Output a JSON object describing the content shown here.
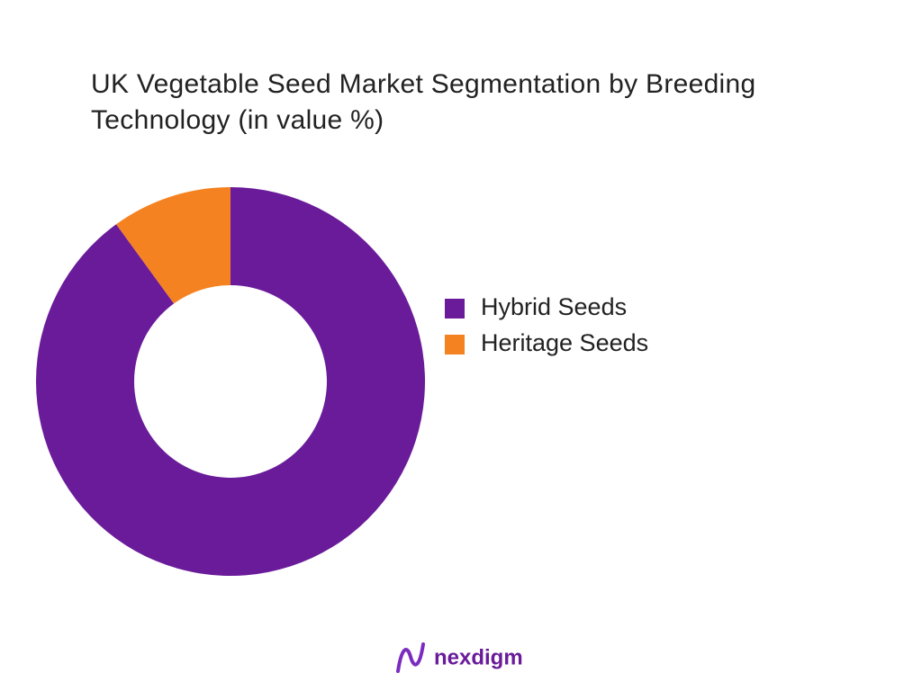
{
  "chart_data": {
    "type": "donut",
    "title": "UK Vegetable Seed Market Segmentation by Breeding Technology (in value %)",
    "categories": [
      "Hybrid Seeds",
      "Heritage Seeds"
    ],
    "values": [
      90,
      10
    ],
    "colors": [
      "#6a1b9a",
      "#f58220"
    ],
    "legend": "right"
  },
  "brand": "nexdigm"
}
